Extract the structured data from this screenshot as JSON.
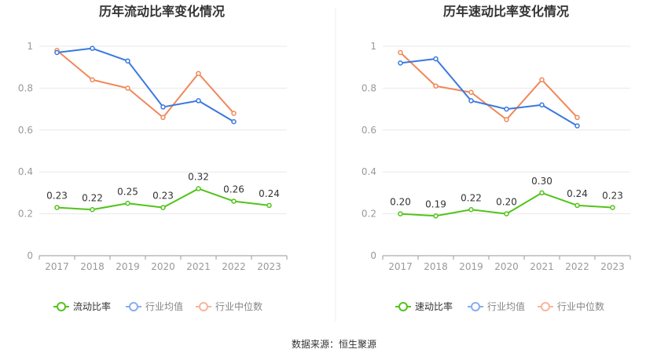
{
  "source": "数据来源：恒生聚源",
  "colors": {
    "main": "#52c41a",
    "avg": "#3a78e0",
    "median": "#f0885a"
  },
  "chart_data": [
    {
      "type": "line",
      "title": "历年流动比率变化情况",
      "categories": [
        "2017",
        "2018",
        "2019",
        "2020",
        "2021",
        "2022",
        "2023"
      ],
      "ylim": [
        0,
        1
      ],
      "yticks": [
        "0",
        "0.2",
        "0.4",
        "0.6",
        "0.8",
        "1"
      ],
      "grid": true,
      "legend_position": "bottom",
      "series": [
        {
          "name": "流动比率",
          "values": [
            0.23,
            0.22,
            0.25,
            0.23,
            0.32,
            0.26,
            0.24
          ],
          "labels": [
            "0.23",
            "0.22",
            "0.25",
            "0.23",
            "0.32",
            "0.26",
            "0.24"
          ]
        },
        {
          "name": "行业均值",
          "values": [
            0.97,
            0.99,
            0.93,
            0.71,
            0.74,
            0.64,
            null
          ]
        },
        {
          "name": "行业中位数",
          "values": [
            0.98,
            0.84,
            0.8,
            0.66,
            0.87,
            0.68,
            null
          ]
        }
      ]
    },
    {
      "type": "line",
      "title": "历年速动比率变化情况",
      "categories": [
        "2017",
        "2018",
        "2019",
        "2020",
        "2021",
        "2022",
        "2023"
      ],
      "ylim": [
        0,
        1
      ],
      "yticks": [
        "0",
        "0.2",
        "0.4",
        "0.6",
        "0.8",
        "1"
      ],
      "grid": true,
      "legend_position": "bottom",
      "series": [
        {
          "name": "速动比率",
          "values": [
            0.2,
            0.19,
            0.22,
            0.2,
            0.3,
            0.24,
            0.23
          ],
          "labels": [
            "0.20",
            "0.19",
            "0.22",
            "0.20",
            "0.30",
            "0.24",
            "0.23"
          ]
        },
        {
          "name": "行业均值",
          "values": [
            0.92,
            0.94,
            0.74,
            0.7,
            0.72,
            0.62,
            null
          ]
        },
        {
          "name": "行业中位数",
          "values": [
            0.97,
            0.81,
            0.78,
            0.65,
            0.84,
            0.66,
            null
          ]
        }
      ]
    }
  ]
}
